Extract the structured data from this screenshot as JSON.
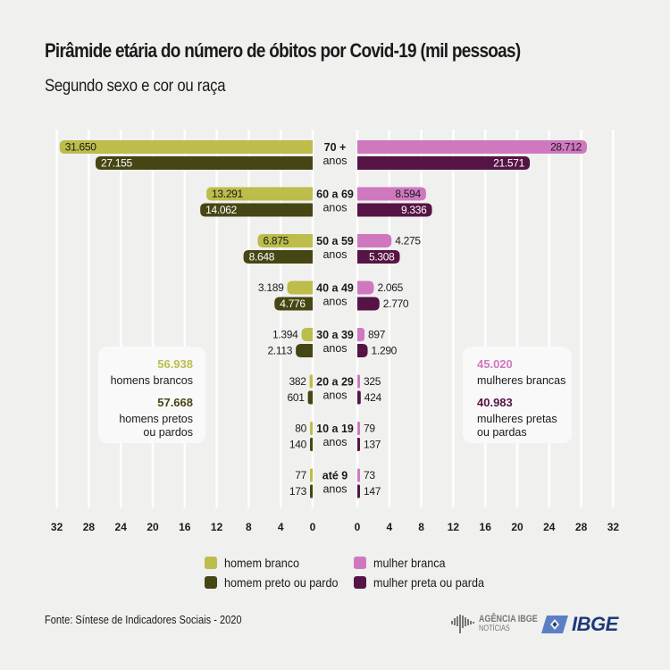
{
  "header": {
    "title": "Pirâmide etária do número de óbitos por Covid-19 (mil pessoas)",
    "subtitle": "Segundo sexo e cor ou raça"
  },
  "colors": {
    "homem_branco": "#bcbd4a",
    "homem_preto": "#464614",
    "mulher_branca": "#cf78bf",
    "mulher_preta": "#551445",
    "gridline": "#ffffff",
    "background": "#f0f0ef"
  },
  "chart_data": {
    "type": "bar",
    "orientation": "horizontal-population-pyramid",
    "title": "Pirâmide etária do número de óbitos por Covid-19 (mil pessoas)",
    "subtitle": "Segundo sexo e cor ou raça",
    "categories": [
      "70 + anos",
      "60 a 69 anos",
      "50 a 59 anos",
      "40 a 49 anos",
      "30 a 39 anos",
      "20 a 29 anos",
      "10 a 19 anos",
      "até 9 anos"
    ],
    "category_lines": [
      [
        "70 +",
        "anos"
      ],
      [
        "60 a 69",
        "anos"
      ],
      [
        "50 a 59",
        "anos"
      ],
      [
        "40 a 49",
        "anos"
      ],
      [
        "30 a 39",
        "anos"
      ],
      [
        "20 a 29",
        "anos"
      ],
      [
        "10 a 19",
        "anos"
      ],
      [
        "até 9",
        "anos"
      ]
    ],
    "series": [
      {
        "name": "homem branco",
        "side": "left",
        "color_key": "homem_branco",
        "values": [
          31.65,
          13.291,
          6.875,
          3.189,
          1.394,
          0.382,
          0.08,
          0.077
        ],
        "labels": [
          "31.650",
          "13.291",
          "6.875",
          "3.189",
          "1.394",
          "382",
          "80",
          "77"
        ]
      },
      {
        "name": "homem preto ou pardo",
        "side": "left",
        "color_key": "homem_preto",
        "values": [
          27.155,
          14.062,
          8.648,
          4.776,
          2.113,
          0.601,
          0.14,
          0.173
        ],
        "labels": [
          "27.155",
          "14.062",
          "8.648",
          "4.776",
          "2.113",
          "601",
          "140",
          "173"
        ]
      },
      {
        "name": "mulher branca",
        "side": "right",
        "color_key": "mulher_branca",
        "values": [
          28.712,
          8.594,
          4.275,
          2.065,
          0.897,
          0.325,
          0.079,
          0.073
        ],
        "labels": [
          "28.712",
          "8.594",
          "4.275",
          "2.065",
          "897",
          "325",
          "79",
          "73"
        ]
      },
      {
        "name": "mulher preta ou parda",
        "side": "right",
        "color_key": "mulher_preta",
        "values": [
          21.571,
          9.336,
          5.308,
          2.77,
          1.29,
          0.424,
          0.137,
          0.147
        ],
        "labels": [
          "21.571",
          "9.336",
          "5.308",
          "2.770",
          "1.290",
          "424",
          "137",
          "147"
        ]
      }
    ],
    "xlim": [
      0,
      32
    ],
    "xticks": [
      0,
      4,
      8,
      12,
      16,
      20,
      24,
      28,
      32
    ],
    "xtick_labels": [
      "0",
      "4",
      "8",
      "12",
      "16",
      "20",
      "24",
      "28",
      "32"
    ],
    "grid": true,
    "xlabel": "",
    "ylabel": ""
  },
  "totals": {
    "left": [
      {
        "value": "56.938",
        "label_lines": [
          "homens brancos"
        ],
        "color_key": "homem_branco"
      },
      {
        "value": "57.668",
        "label_lines": [
          "homens pretos",
          "ou pardos"
        ],
        "color_key": "homem_preto"
      }
    ],
    "right": [
      {
        "value": "45.020",
        "label_lines": [
          "mulheres brancas"
        ],
        "color_key": "mulher_branca"
      },
      {
        "value": "40.983",
        "label_lines": [
          "mulheres pretas",
          "ou pardas"
        ],
        "color_key": "mulher_preta"
      }
    ]
  },
  "legend": [
    {
      "label": "homem branco",
      "color_key": "homem_branco"
    },
    {
      "label": "homem preto ou pardo",
      "color_key": "homem_preto"
    },
    {
      "label": "mulher branca",
      "color_key": "mulher_branca"
    },
    {
      "label": "mulher preta ou parda",
      "color_key": "mulher_preta"
    }
  ],
  "footer": {
    "source": "Fonte: Síntese de Indicadores Sociais - 2020",
    "logo_agencia": "AGÊNCIA IBGE",
    "logo_agencia_sub": "NOTÍCIAS",
    "logo_ibge": "IBGE"
  }
}
